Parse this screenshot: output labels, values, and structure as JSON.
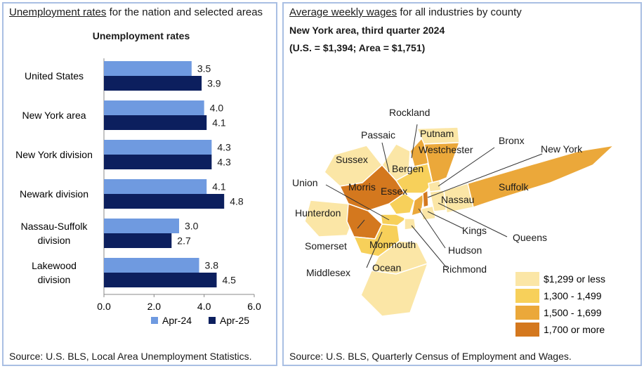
{
  "left_panel": {
    "header_link": "Unemployment rates",
    "header_rest": " for the nation and selected areas",
    "source": "Source: U.S. BLS, Local Area Unemployment Statistics."
  },
  "right_panel": {
    "header_link": "Average weekly wages",
    "header_rest": " for all industries by county",
    "subtitle1": "New York area, third quarter 2024",
    "subtitle2": "(U.S. = $1,394; Area = $1,751)",
    "source": "Source: U.S. BLS, Quarterly Census of Employment and Wages.",
    "legend": [
      {
        "label": "$1,299 or less",
        "color": "#fbe6a6"
      },
      {
        "label": "1,300 - 1,499",
        "color": "#f7d05a"
      },
      {
        "label": "1,500 - 1,699",
        "color": "#eba83a"
      },
      {
        "label": "1,700 or more",
        "color": "#d4781e"
      }
    ],
    "county_labels": [
      "Rockland",
      "Putnam",
      "Passaic",
      "Westchester",
      "Bronx",
      "New York",
      "Sussex",
      "Bergen",
      "Union",
      "Morris",
      "Essex",
      "Suffolk",
      "Nassau",
      "Hunterdon",
      "Kings",
      "Queens",
      "Somerset",
      "Monmouth",
      "Hudson",
      "Middlesex",
      "Ocean",
      "Richmond"
    ]
  },
  "chart_data": {
    "type": "bar",
    "orientation": "horizontal",
    "title": "Unemployment rates",
    "categories": [
      [
        "United States"
      ],
      [
        "New York area"
      ],
      [
        "New York division"
      ],
      [
        "Newark division"
      ],
      [
        "Nassau-Suffolk",
        "division"
      ],
      [
        "Lakewood",
        "division"
      ]
    ],
    "series": [
      {
        "name": "Apr-24",
        "color": "#6f9ae0",
        "values": [
          3.5,
          4.0,
          4.3,
          4.1,
          3.0,
          3.8
        ]
      },
      {
        "name": "Apr-25",
        "color": "#0c1f5e",
        "values": [
          3.9,
          4.1,
          4.3,
          4.8,
          2.7,
          4.5
        ]
      }
    ],
    "xlim": [
      0,
      6
    ],
    "xticks": [
      "0.0",
      "2.0",
      "4.0",
      "6.0"
    ],
    "legend_position": "bottom"
  }
}
